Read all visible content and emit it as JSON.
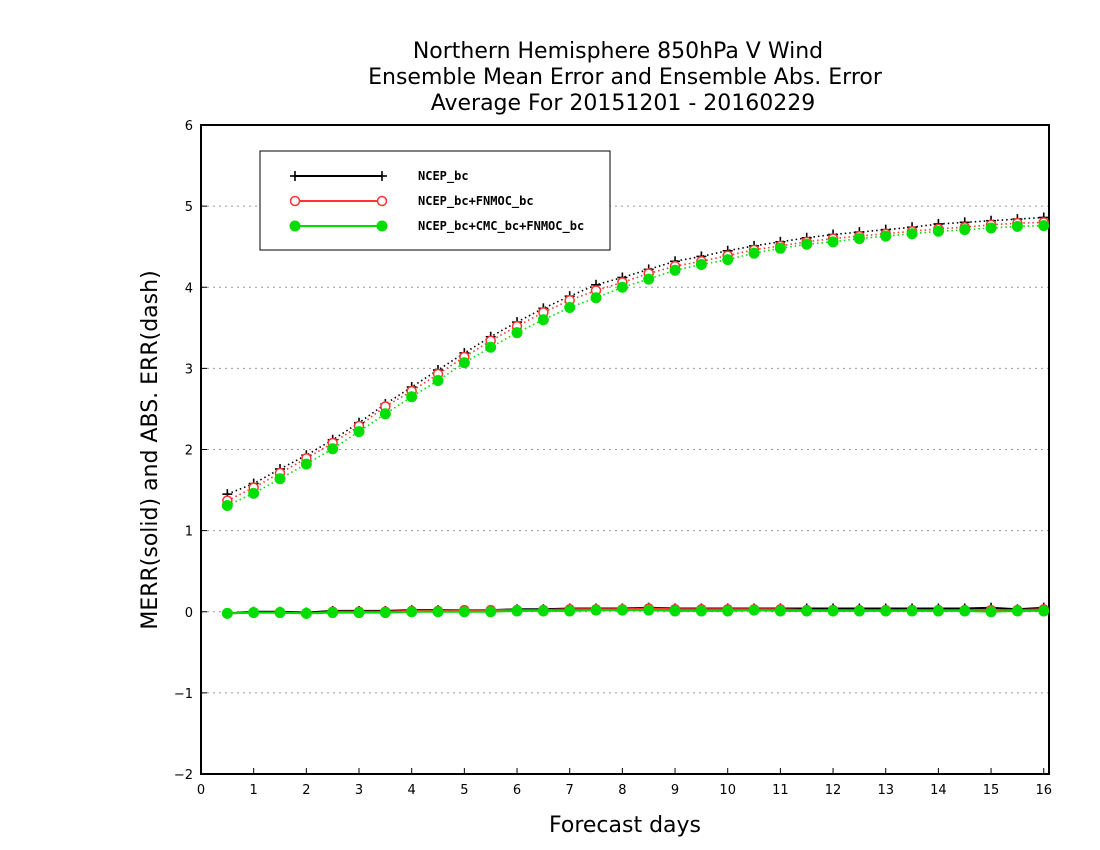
{
  "chart_data": {
    "type": "line",
    "title": [
      "Northern Hemisphere 850hPa V Wind",
      "Ensemble Mean Error and Ensemble Abs. Error",
      "Average For 20151201 - 20160229"
    ],
    "xlabel": "Forecast days",
    "ylabel": "MERR(solid) and ABS. ERR(dash)",
    "xlim": [
      0,
      16.1
    ],
    "ylim": [
      -2,
      6
    ],
    "xticks": [
      "0",
      "1",
      "2",
      "3",
      "4",
      "5",
      "6",
      "7",
      "8",
      "9",
      "10",
      "11",
      "12",
      "13",
      "14",
      "15",
      "16"
    ],
    "yticks": [
      "−2",
      "−1",
      "0",
      "1",
      "2",
      "3",
      "4",
      "5",
      "6"
    ],
    "grid": "horizontal dotted",
    "legend_position": "top-left",
    "x": [
      0.5,
      1,
      1.5,
      2,
      2.5,
      3,
      3.5,
      4,
      4.5,
      5,
      5.5,
      6,
      6.5,
      7,
      7.5,
      8,
      8.5,
      9,
      9.5,
      10,
      10.5,
      11,
      11.5,
      12,
      12.5,
      13,
      13.5,
      14,
      14.5,
      15,
      15.5,
      16
    ],
    "series": [
      {
        "name": "NCEP_bc",
        "color": "#000000",
        "marker": "plus",
        "merr": [
          -0.02,
          0,
          0,
          -0.01,
          0.01,
          0.01,
          0.01,
          0.02,
          0.02,
          0.02,
          0.02,
          0.03,
          0.03,
          0.04,
          0.04,
          0.04,
          0.05,
          0.04,
          0.04,
          0.04,
          0.04,
          0.04,
          0.04,
          0.04,
          0.04,
          0.04,
          0.04,
          0.04,
          0.04,
          0.05,
          0.03,
          0.05
        ],
        "abs_err": [
          1.45,
          1.58,
          1.76,
          1.93,
          2.12,
          2.33,
          2.56,
          2.77,
          2.98,
          3.19,
          3.39,
          3.57,
          3.74,
          3.89,
          4.03,
          4.12,
          4.22,
          4.32,
          4.38,
          4.45,
          4.51,
          4.56,
          4.61,
          4.65,
          4.68,
          4.71,
          4.74,
          4.78,
          4.8,
          4.82,
          4.84,
          4.86
        ]
      },
      {
        "name": "NCEP_bc+FNMOC_bc",
        "color": "#ff3333",
        "marker": "open-circle",
        "merr": [
          -0.02,
          -0.01,
          -0.01,
          -0.02,
          0,
          0,
          0,
          0.01,
          0.01,
          0.02,
          0.02,
          0.02,
          0.02,
          0.03,
          0.03,
          0.03,
          0.04,
          0.03,
          0.03,
          0.03,
          0.03,
          0.03,
          0.02,
          0.02,
          0.02,
          0.02,
          0.02,
          0.02,
          0.02,
          0.02,
          0.02,
          0.03
        ],
        "abs_err": [
          1.37,
          1.53,
          1.71,
          1.89,
          2.08,
          2.29,
          2.53,
          2.72,
          2.93,
          3.14,
          3.34,
          3.52,
          3.69,
          3.84,
          3.96,
          4.06,
          4.17,
          4.26,
          4.32,
          4.39,
          4.46,
          4.51,
          4.56,
          4.6,
          4.63,
          4.66,
          4.69,
          4.72,
          4.74,
          4.77,
          4.79,
          4.8
        ]
      },
      {
        "name": "NCEP_bc+CMC_bc+FNMOC_bc",
        "color": "#00dd00",
        "marker": "filled-circle",
        "merr": [
          -0.02,
          -0.01,
          -0.01,
          -0.02,
          -0.01,
          -0.01,
          -0.01,
          0,
          0,
          0,
          0,
          0.01,
          0.01,
          0.01,
          0.02,
          0.02,
          0.02,
          0.01,
          0.01,
          0.01,
          0.02,
          0.01,
          0.01,
          0.01,
          0.01,
          0.01,
          0.01,
          0.01,
          0.01,
          0,
          0.01,
          0.01
        ],
        "abs_err": [
          1.31,
          1.46,
          1.64,
          1.82,
          2.01,
          2.22,
          2.44,
          2.65,
          2.85,
          3.07,
          3.26,
          3.44,
          3.6,
          3.75,
          3.87,
          4.0,
          4.1,
          4.21,
          4.28,
          4.34,
          4.42,
          4.48,
          4.53,
          4.56,
          4.6,
          4.63,
          4.66,
          4.69,
          4.71,
          4.73,
          4.75,
          4.76
        ]
      }
    ]
  }
}
